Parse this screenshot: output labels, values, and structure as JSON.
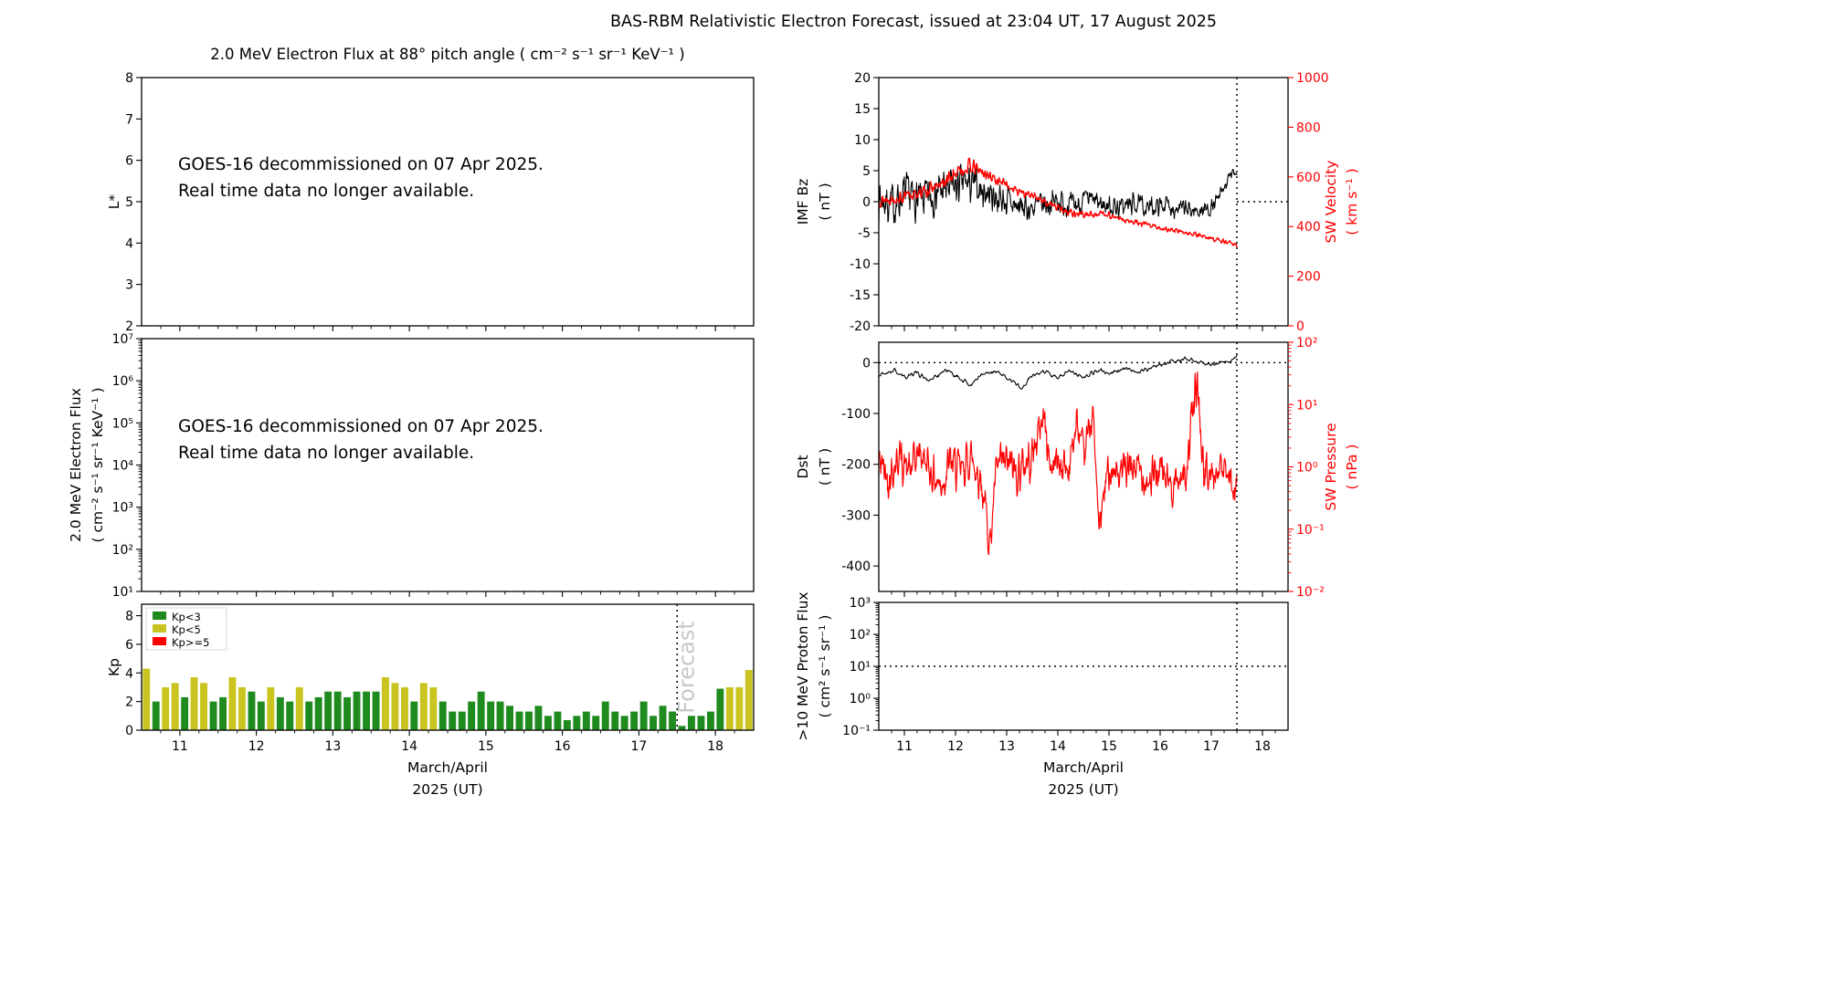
{
  "title": "BAS-RBM Relativistic Electron Forecast, issued at 23:04 UT, 17 August 2025",
  "colors": {
    "line_black": "#000000",
    "line_red": "#ff0000",
    "kp_green": "#1f8b1f",
    "kp_yellow": "#c9c41f",
    "kp_red": "#ff0000",
    "forecast_gray": "#c8c8c8"
  },
  "xaxis": {
    "xlim": [
      10.5,
      18.5
    ],
    "major_ticks": [
      11,
      12,
      13,
      14,
      15,
      16,
      17,
      18
    ],
    "minor_step": 0.25,
    "forecast_x": 17.5
  },
  "chart_data": [
    {
      "id": "lstar",
      "type": "empty",
      "title": "2.0 MeV Electron Flux at 88° pitch angle ( cm⁻² s⁻¹ sr⁻¹ KeV⁻¹ )",
      "ylabel": "L*",
      "yscale": "linear",
      "ylim": [
        2,
        8
      ],
      "yticks": [
        2,
        3,
        4,
        5,
        6,
        7,
        8
      ],
      "annotation": [
        "GOES-16 decommissioned on 07 Apr 2025.",
        "Real time data no longer available."
      ],
      "show_xticklabels": false
    },
    {
      "id": "eflux",
      "type": "empty",
      "ylabel": "2.0 MeV Electron Flux\n( cm⁻² s⁻¹ sr⁻¹ KeV⁻¹ )",
      "yscale": "log",
      "ylim": [
        10,
        10000000
      ],
      "ytick_exps": [
        7,
        6,
        5,
        4,
        3,
        2,
        1
      ],
      "annotation": [
        "GOES-16 decommissioned on 07 Apr 2025.",
        "Real time data no longer available."
      ],
      "show_xticklabels": false
    },
    {
      "id": "kp",
      "type": "bar",
      "ylabel": "Kp",
      "yscale": "linear",
      "ylim": [
        0,
        8.8
      ],
      "yticks": [
        0,
        2,
        4,
        6,
        8
      ],
      "bar_start": 10.5,
      "bar_step": 0.125,
      "thresholds": [
        3,
        5
      ],
      "values": [
        4.3,
        2.0,
        3.0,
        3.3,
        2.3,
        3.7,
        3.3,
        2.0,
        2.3,
        3.7,
        3.0,
        2.7,
        2.0,
        3.0,
        2.3,
        2.0,
        3.0,
        2.0,
        2.3,
        2.7,
        2.7,
        2.3,
        2.7,
        2.7,
        2.7,
        3.7,
        3.3,
        3.0,
        2.0,
        3.3,
        3.0,
        2.0,
        1.3,
        1.3,
        2.0,
        2.7,
        2.0,
        2.0,
        1.7,
        1.3,
        1.3,
        1.7,
        1.0,
        1.3,
        0.7,
        1.0,
        1.3,
        1.0,
        2.0,
        1.3,
        1.0,
        1.3,
        2.0,
        1.0,
        1.7,
        1.3,
        0.3,
        1.0,
        1.0,
        1.3,
        2.9,
        3.0,
        3.0,
        4.2
      ],
      "legend": [
        {
          "label": "Kp<3",
          "color": "#1f8b1f"
        },
        {
          "label": "Kp<5",
          "color": "#c9c41f"
        },
        {
          "label": "Kp>=5",
          "color": "#ff0000"
        }
      ],
      "forecast_line_x": 17.5,
      "forecast_label": "Forecast",
      "show_xticklabels": true,
      "xlabel": [
        "March/April",
        "2025 (UT)"
      ]
    },
    {
      "id": "bz_sw",
      "type": "line",
      "ylabel": "IMF Bz\n( nT )",
      "yscale": "linear",
      "ylim": [
        -20,
        20
      ],
      "yticks": [
        20,
        15,
        10,
        5,
        0,
        -5,
        -10,
        -15,
        -20
      ],
      "right": {
        "ylabel": "SW Velocity\n( km s⁻¹ )",
        "yscale": "linear",
        "ylim": [
          0,
          1000
        ],
        "yticks": [
          1000,
          800,
          600,
          400,
          200,
          0
        ],
        "color": "#ff0000"
      },
      "hline": {
        "y": 0,
        "xrange": [
          17.5,
          18.5
        ]
      },
      "forecast_line_x": 17.5,
      "show_xticklabels": false,
      "series": [
        {
          "name": "IMF Bz",
          "axis": "left",
          "color": "#000000",
          "width": 1.1,
          "n": 900,
          "seed": 7,
          "xrange": [
            10.5,
            17.5
          ],
          "anchors": [
            [
              10.5,
              0.5
            ],
            [
              10.8,
              -0.5
            ],
            [
              11.0,
              1.2
            ],
            [
              11.3,
              0.0
            ],
            [
              11.6,
              1.5
            ],
            [
              11.9,
              2.2
            ],
            [
              12.2,
              3.0
            ],
            [
              12.5,
              2.0
            ],
            [
              12.8,
              0.8
            ],
            [
              13.1,
              -0.5
            ],
            [
              13.4,
              -1.2
            ],
            [
              13.7,
              -0.5
            ],
            [
              14.0,
              0.2
            ],
            [
              14.3,
              -0.8
            ],
            [
              14.6,
              0.3
            ],
            [
              14.9,
              -0.5
            ],
            [
              15.2,
              -0.9
            ],
            [
              15.5,
              -0.3
            ],
            [
              15.8,
              -1.0
            ],
            [
              16.1,
              -0.4
            ],
            [
              16.4,
              -1.2
            ],
            [
              16.7,
              -1.5
            ],
            [
              17.0,
              -1.0
            ],
            [
              17.15,
              0.5
            ],
            [
              17.3,
              3.0
            ],
            [
              17.4,
              4.5
            ],
            [
              17.5,
              4.8
            ]
          ],
          "noise": [
            [
              10.5,
              2.6
            ],
            [
              12.0,
              2.6
            ],
            [
              12.8,
              2.2
            ],
            [
              13.5,
              1.7
            ],
            [
              14.5,
              1.5
            ],
            [
              15.5,
              1.3
            ],
            [
              16.5,
              1.2
            ],
            [
              17.1,
              1.0
            ],
            [
              17.4,
              0.7
            ],
            [
              17.5,
              0.6
            ]
          ]
        },
        {
          "name": "SW Velocity",
          "axis": "right",
          "color": "#ff0000",
          "width": 1.4,
          "n": 900,
          "seed": 13,
          "xrange": [
            10.5,
            17.5
          ],
          "anchors": [
            [
              10.5,
              505
            ],
            [
              10.9,
              515
            ],
            [
              11.3,
              535
            ],
            [
              11.7,
              565
            ],
            [
              12.0,
              615
            ],
            [
              12.3,
              645
            ],
            [
              12.5,
              620
            ],
            [
              12.8,
              590
            ],
            [
              13.1,
              555
            ],
            [
              13.4,
              530
            ],
            [
              13.7,
              505
            ],
            [
              14.0,
              475
            ],
            [
              14.3,
              455
            ],
            [
              14.6,
              445
            ],
            [
              14.9,
              455
            ],
            [
              15.2,
              430
            ],
            [
              15.5,
              415
            ],
            [
              15.8,
              405
            ],
            [
              16.1,
              390
            ],
            [
              16.4,
              378
            ],
            [
              16.7,
              368
            ],
            [
              17.0,
              352
            ],
            [
              17.3,
              338
            ],
            [
              17.5,
              328
            ]
          ],
          "noise": [
            [
              10.5,
              16
            ],
            [
              11.5,
              18
            ],
            [
              12.2,
              22
            ],
            [
              13.0,
              14
            ],
            [
              14.0,
              12
            ],
            [
              15.0,
              10
            ],
            [
              16.0,
              8
            ],
            [
              17.5,
              7
            ]
          ]
        }
      ]
    },
    {
      "id": "dst_p",
      "type": "line",
      "ylabel": "Dst\n( nT )",
      "yscale": "linear",
      "ylim": [
        -450,
        40
      ],
      "yticks": [
        0,
        -100,
        -200,
        -300,
        -400
      ],
      "right": {
        "ylabel": "SW Pressure\n( nPa )",
        "yscale": "log",
        "ylim": [
          0.01,
          100
        ],
        "ytick_exps": [
          2,
          1,
          0,
          -1,
          -2
        ],
        "color": "#ff0000"
      },
      "hline": {
        "y": 0,
        "xrange": [
          10.5,
          18.5
        ]
      },
      "forecast_line_x": 17.5,
      "show_xticklabels": false,
      "series": [
        {
          "name": "Dst",
          "axis": "left",
          "color": "#000000",
          "width": 1.1,
          "n": 600,
          "seed": 21,
          "xrange": [
            10.5,
            17.5
          ],
          "anchors": [
            [
              10.5,
              -25
            ],
            [
              10.8,
              -15
            ],
            [
              11.0,
              -30
            ],
            [
              11.2,
              -18
            ],
            [
              11.5,
              -35
            ],
            [
              11.8,
              -15
            ],
            [
              12.0,
              -25
            ],
            [
              12.3,
              -45
            ],
            [
              12.5,
              -25
            ],
            [
              12.8,
              -18
            ],
            [
              13.0,
              -30
            ],
            [
              13.3,
              -48
            ],
            [
              13.5,
              -25
            ],
            [
              13.8,
              -18
            ],
            [
              14.0,
              -30
            ],
            [
              14.2,
              -15
            ],
            [
              14.5,
              -28
            ],
            [
              14.8,
              -15
            ],
            [
              15.0,
              -22
            ],
            [
              15.3,
              -12
            ],
            [
              15.6,
              -18
            ],
            [
              15.9,
              -8
            ],
            [
              16.2,
              2
            ],
            [
              16.5,
              8
            ],
            [
              16.8,
              0
            ],
            [
              17.0,
              -5
            ],
            [
              17.2,
              2
            ],
            [
              17.35,
              0
            ],
            [
              17.5,
              12
            ]
          ],
          "noise": [
            [
              10.5,
              4
            ],
            [
              17.5,
              3
            ]
          ]
        },
        {
          "name": "SW Pressure",
          "axis": "right",
          "color": "#ff0000",
          "width": 1.2,
          "n": 900,
          "seed": 42,
          "log": true,
          "xrange": [
            10.5,
            17.5
          ],
          "anchors": [
            [
              10.5,
              1.3
            ],
            [
              10.7,
              0.7
            ],
            [
              10.9,
              1.5
            ],
            [
              11.1,
              0.8
            ],
            [
              11.3,
              1.8
            ],
            [
              11.5,
              0.9
            ],
            [
              11.7,
              0.5
            ],
            [
              11.9,
              1.2
            ],
            [
              12.1,
              0.8
            ],
            [
              12.3,
              1.5
            ],
            [
              12.5,
              0.6
            ],
            [
              12.68,
              0.06
            ],
            [
              12.8,
              0.9
            ],
            [
              13.0,
              1.2
            ],
            [
              13.2,
              0.8
            ],
            [
              13.5,
              1.5
            ],
            [
              13.72,
              7.0
            ],
            [
              13.85,
              1.0
            ],
            [
              14.0,
              1.3
            ],
            [
              14.2,
              0.9
            ],
            [
              14.38,
              5.0
            ],
            [
              14.5,
              1.2
            ],
            [
              14.68,
              9.0
            ],
            [
              14.8,
              0.1
            ],
            [
              15.0,
              1.1
            ],
            [
              15.2,
              0.7
            ],
            [
              15.5,
              1.0
            ],
            [
              15.8,
              0.6
            ],
            [
              16.0,
              0.9
            ],
            [
              16.2,
              0.5
            ],
            [
              16.5,
              0.8
            ],
            [
              16.72,
              25.0
            ],
            [
              16.85,
              0.8
            ],
            [
              17.0,
              0.7
            ],
            [
              17.2,
              0.9
            ],
            [
              17.35,
              0.6
            ],
            [
              17.5,
              0.6
            ]
          ],
          "noise": [
            [
              10.5,
              0.27
            ],
            [
              17.5,
              0.25
            ]
          ]
        }
      ]
    },
    {
      "id": "proton",
      "type": "line",
      "ylabel": ">10 MeV Proton Flux\n( cm² s⁻¹ sr⁻¹ )",
      "yscale": "log",
      "ylim": [
        0.1,
        1000
      ],
      "ytick_exps": [
        3,
        2,
        1,
        0,
        -1
      ],
      "hline": {
        "y": 10,
        "xrange": [
          10.5,
          18.5
        ]
      },
      "forecast_line_x": 17.5,
      "show_xticklabels": true,
      "xlabel": [
        "March/April",
        "2025 (UT)"
      ],
      "series": []
    }
  ]
}
